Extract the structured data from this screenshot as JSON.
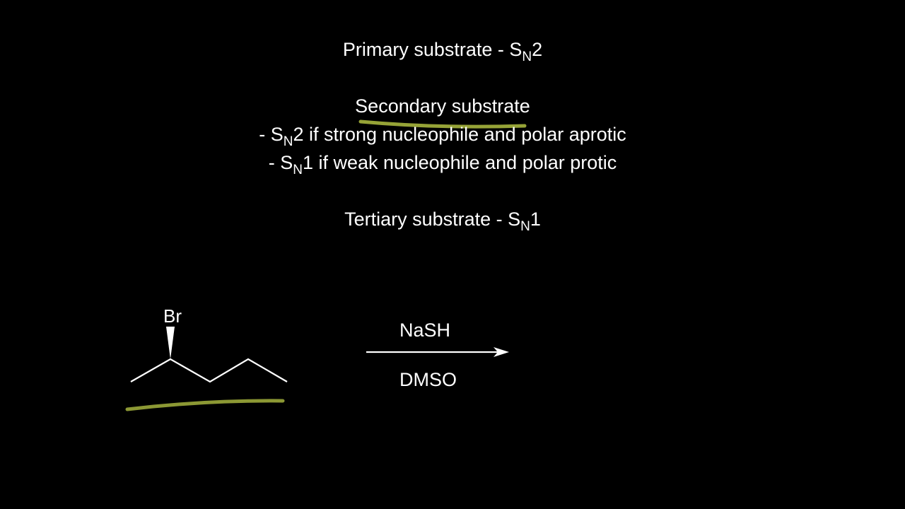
{
  "rules": {
    "primary": {
      "text": "Primary substrate - S",
      "sub": "N",
      "suffix": "2"
    },
    "secondary_title": "Secondary substrate",
    "secondary_sn2": {
      "prefix": "- S",
      "sub": "N",
      "text": "2 if strong nucleophile and polar aprotic"
    },
    "secondary_sn1": {
      "prefix": "- S",
      "sub": "N",
      "text": "1 if weak nucleophile and polar protic"
    },
    "tertiary": {
      "text": "Tertiary substrate - S",
      "sub": "N",
      "suffix": "1"
    }
  },
  "reaction": {
    "substituent": "Br",
    "reagent": "NaSH",
    "solvent": "DMSO"
  },
  "colors": {
    "background": "#000000",
    "text": "#ffffff",
    "highlight": "#c8d94a"
  }
}
